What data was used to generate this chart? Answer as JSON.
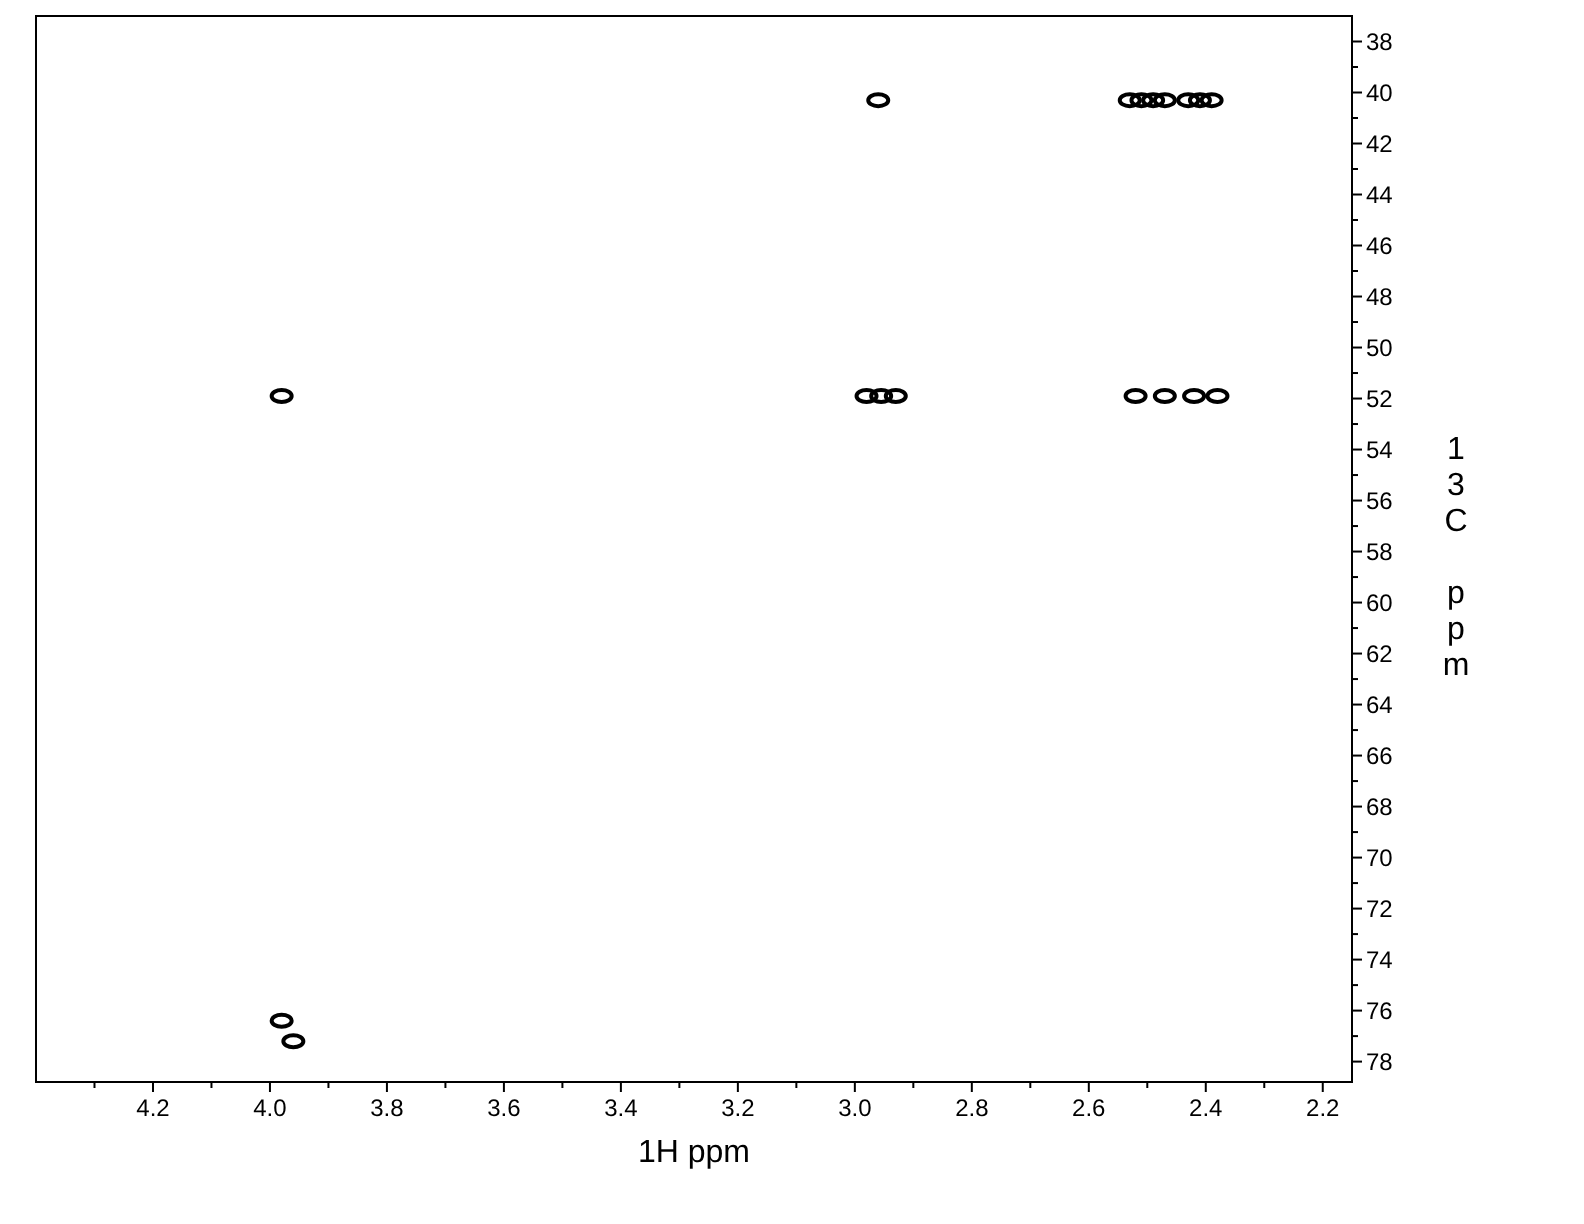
{
  "chart_data": {
    "type": "scatter",
    "xlabel": "1H ppm",
    "ylabel": "13C ppm",
    "marker": "circle",
    "grid": false,
    "xlim": [
      4.4,
      2.15
    ],
    "ylim": [
      78.8,
      37
    ],
    "xticks": [
      {
        "value": 4.3,
        "label": null
      },
      4.2,
      {
        "value": 4.1,
        "label": null
      },
      {
        "value": 4.0,
        "label": "4.0"
      },
      {
        "value": 3.9,
        "label": null
      },
      3.8,
      {
        "value": 3.7,
        "label": null
      },
      3.6,
      {
        "value": 3.5,
        "label": null
      },
      3.4,
      {
        "value": 3.3,
        "label": null
      },
      3.2,
      {
        "value": 3.1,
        "label": null
      },
      {
        "value": 3.0,
        "label": "3.0"
      },
      {
        "value": 2.9,
        "label": null
      },
      2.8,
      {
        "value": 2.7,
        "label": null
      },
      2.6,
      {
        "value": 2.5,
        "label": null
      },
      2.4,
      {
        "value": 2.3,
        "label": null
      },
      2.2
    ],
    "yticks": [
      38,
      {
        "value": 39,
        "label": null
      },
      40,
      {
        "value": 41,
        "label": null
      },
      42,
      {
        "value": 43,
        "label": null
      },
      44,
      {
        "value": 45,
        "label": null
      },
      46,
      {
        "value": 47,
        "label": null
      },
      48,
      {
        "value": 49,
        "label": null
      },
      50,
      {
        "value": 51,
        "label": null
      },
      52,
      {
        "value": 53,
        "label": null
      },
      54,
      {
        "value": 55,
        "label": null
      },
      56,
      {
        "value": 57,
        "label": null
      },
      58,
      {
        "value": 59,
        "label": null
      },
      60,
      {
        "value": 61,
        "label": null
      },
      62,
      {
        "value": 63,
        "label": null
      },
      64,
      {
        "value": 65,
        "label": null
      },
      66,
      {
        "value": 67,
        "label": null
      },
      68,
      {
        "value": 69,
        "label": null
      },
      70,
      {
        "value": 71,
        "label": null
      },
      72,
      {
        "value": 73,
        "label": null
      },
      74,
      {
        "value": 75,
        "label": null
      },
      76,
      {
        "value": 77,
        "label": null
      },
      78
    ],
    "series": [
      {
        "color": "#000000",
        "x": [
          2.96,
          2.53,
          2.51,
          2.49,
          2.47,
          2.43,
          2.41,
          2.39,
          3.98,
          2.98,
          2.955,
          2.93,
          2.52,
          2.47,
          2.42,
          2.38,
          3.98,
          3.96
        ],
        "values": [
          40.3,
          40.3,
          40.3,
          40.3,
          40.3,
          40.3,
          40.3,
          40.3,
          51.9,
          51.9,
          51.9,
          51.9,
          51.9,
          51.9,
          51.9,
          51.9,
          76.4,
          77.2
        ]
      }
    ]
  }
}
